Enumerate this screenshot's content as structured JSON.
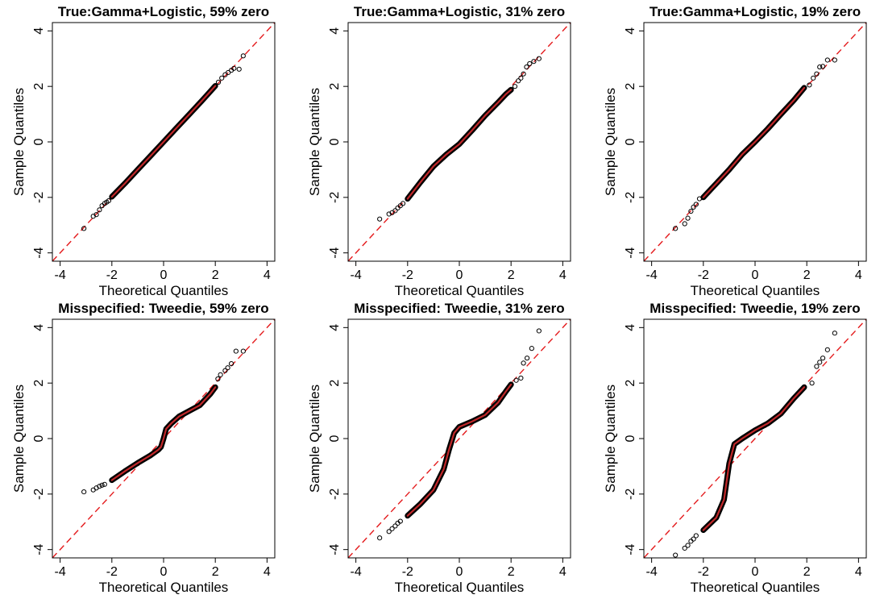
{
  "chart_data": [
    {
      "type": "scatter",
      "title": "True:Gamma+Logistic, 59% zero",
      "xlabel": "Theoretical Quantiles",
      "ylabel": "Sample Quantiles",
      "xlim": [
        -4.3,
        4.3
      ],
      "ylim": [
        -4.3,
        4.3
      ],
      "xticks": [
        "-4",
        "-2",
        "0",
        "2",
        "4"
      ],
      "yticks": [
        "-4",
        "-2",
        "0",
        "2",
        "4"
      ],
      "reference_line": {
        "slope": 1,
        "intercept": 0,
        "color": "#e41a1c",
        "style": "dashed"
      },
      "points": [
        [
          -3.08,
          -3.12
        ],
        [
          -2.72,
          -2.68
        ],
        [
          -2.6,
          -2.62
        ],
        [
          -2.48,
          -2.45
        ],
        [
          -2.38,
          -2.3
        ],
        [
          -2.28,
          -2.22
        ],
        [
          -2.2,
          -2.17
        ],
        [
          -2.12,
          -2.12
        ],
        [
          -2.0,
          -1.98
        ],
        [
          -1.5,
          -1.5
        ],
        [
          -1.0,
          -1.0
        ],
        [
          -0.5,
          -0.5
        ],
        [
          0.0,
          0.0
        ],
        [
          0.5,
          0.5
        ],
        [
          1.0,
          1.0
        ],
        [
          1.5,
          1.5
        ],
        [
          2.0,
          2.02
        ],
        [
          2.12,
          2.15
        ],
        [
          2.25,
          2.3
        ],
        [
          2.38,
          2.42
        ],
        [
          2.5,
          2.5
        ],
        [
          2.62,
          2.58
        ],
        [
          2.72,
          2.65
        ],
        [
          2.92,
          2.62
        ],
        [
          3.08,
          3.1
        ]
      ]
    },
    {
      "type": "scatter",
      "title": "True:Gamma+Logistic, 31% zero",
      "xlabel": "Theoretical Quantiles",
      "ylabel": "Sample Quantiles",
      "xlim": [
        -4.3,
        4.3
      ],
      "ylim": [
        -4.3,
        4.3
      ],
      "xticks": [
        "-4",
        "-2",
        "0",
        "2",
        "4"
      ],
      "yticks": [
        "-4",
        "-2",
        "0",
        "2",
        "4"
      ],
      "reference_line": {
        "slope": 1,
        "intercept": 0,
        "color": "#e41a1c",
        "style": "dashed"
      },
      "points": [
        [
          -3.08,
          -2.78
        ],
        [
          -2.72,
          -2.6
        ],
        [
          -2.6,
          -2.55
        ],
        [
          -2.48,
          -2.48
        ],
        [
          -2.38,
          -2.38
        ],
        [
          -2.28,
          -2.3
        ],
        [
          -2.18,
          -2.22
        ],
        [
          -2.0,
          -2.05
        ],
        [
          -1.5,
          -1.45
        ],
        [
          -1.0,
          -0.88
        ],
        [
          -0.5,
          -0.45
        ],
        [
          0.0,
          -0.08
        ],
        [
          0.5,
          0.42
        ],
        [
          1.0,
          0.95
        ],
        [
          1.5,
          1.42
        ],
        [
          1.8,
          1.72
        ],
        [
          2.0,
          1.88
        ],
        [
          2.15,
          2.0
        ],
        [
          2.28,
          2.2
        ],
        [
          2.38,
          2.3
        ],
        [
          2.48,
          2.45
        ],
        [
          2.6,
          2.7
        ],
        [
          2.72,
          2.82
        ],
        [
          2.88,
          2.9
        ],
        [
          3.08,
          3.0
        ]
      ]
    },
    {
      "type": "scatter",
      "title": "True:Gamma+Logistic, 19% zero",
      "xlabel": "Theoretical Quantiles",
      "ylabel": "Sample Quantiles",
      "xlim": [
        -4.3,
        4.3
      ],
      "ylim": [
        -4.3,
        4.3
      ],
      "xticks": [
        "-4",
        "-2",
        "0",
        "2",
        "4"
      ],
      "yticks": [
        "-4",
        "-2",
        "0",
        "2",
        "4"
      ],
      "reference_line": {
        "slope": 1,
        "intercept": 0,
        "color": "#e41a1c",
        "style": "dashed"
      },
      "points": [
        [
          -3.08,
          -3.12
        ],
        [
          -2.72,
          -2.95
        ],
        [
          -2.6,
          -2.75
        ],
        [
          -2.48,
          -2.5
        ],
        [
          -2.38,
          -2.35
        ],
        [
          -2.28,
          -2.25
        ],
        [
          -2.15,
          -2.05
        ],
        [
          -2.0,
          -2.0
        ],
        [
          -1.5,
          -1.5
        ],
        [
          -1.0,
          -1.0
        ],
        [
          -0.5,
          -0.45
        ],
        [
          0.0,
          0.0
        ],
        [
          0.5,
          0.48
        ],
        [
          1.0,
          1.0
        ],
        [
          1.5,
          1.5
        ],
        [
          1.9,
          1.95
        ],
        [
          2.1,
          2.05
        ],
        [
          2.25,
          2.3
        ],
        [
          2.38,
          2.45
        ],
        [
          2.5,
          2.7
        ],
        [
          2.62,
          2.72
        ],
        [
          2.8,
          2.95
        ],
        [
          3.08,
          2.95
        ]
      ]
    },
    {
      "type": "scatter",
      "title": "Misspecified: Tweedie, 59% zero",
      "xlabel": "Theoretical Quantiles",
      "ylabel": "Sample Quantiles",
      "xlim": [
        -4.3,
        4.3
      ],
      "ylim": [
        -4.3,
        4.3
      ],
      "xticks": [
        "-4",
        "-2",
        "0",
        "2",
        "4"
      ],
      "yticks": [
        "-4",
        "-2",
        "0",
        "2",
        "4"
      ],
      "reference_line": {
        "slope": 1,
        "intercept": 0,
        "color": "#e41a1c",
        "style": "dashed"
      },
      "points": [
        [
          -3.08,
          -1.92
        ],
        [
          -2.72,
          -1.85
        ],
        [
          -2.6,
          -1.78
        ],
        [
          -2.48,
          -1.72
        ],
        [
          -2.38,
          -1.68
        ],
        [
          -2.28,
          -1.65
        ],
        [
          -2.0,
          -1.5
        ],
        [
          -1.5,
          -1.18
        ],
        [
          -1.0,
          -0.88
        ],
        [
          -0.5,
          -0.6
        ],
        [
          -0.2,
          -0.4
        ],
        [
          -0.1,
          -0.3
        ],
        [
          0.0,
          0.0
        ],
        [
          0.1,
          0.35
        ],
        [
          0.3,
          0.55
        ],
        [
          0.6,
          0.8
        ],
        [
          1.0,
          1.0
        ],
        [
          1.4,
          1.2
        ],
        [
          1.8,
          1.6
        ],
        [
          2.0,
          1.85
        ],
        [
          2.1,
          2.15
        ],
        [
          2.2,
          2.3
        ],
        [
          2.38,
          2.45
        ],
        [
          2.48,
          2.55
        ],
        [
          2.62,
          2.7
        ],
        [
          2.8,
          3.15
        ],
        [
          3.08,
          3.15
        ]
      ]
    },
    {
      "type": "scatter",
      "title": "Misspecified: Tweedie, 31% zero",
      "xlabel": "Theoretical Quantiles",
      "ylabel": "Sample Quantiles",
      "xlim": [
        -4.3,
        4.3
      ],
      "ylim": [
        -4.3,
        4.3
      ],
      "xticks": [
        "-4",
        "-2",
        "0",
        "2",
        "4"
      ],
      "yticks": [
        "-4",
        "-2",
        "0",
        "2",
        "4"
      ],
      "reference_line": {
        "slope": 1,
        "intercept": 0,
        "color": "#e41a1c",
        "style": "dashed"
      },
      "points": [
        [
          -3.08,
          -3.58
        ],
        [
          -2.72,
          -3.35
        ],
        [
          -2.6,
          -3.25
        ],
        [
          -2.48,
          -3.15
        ],
        [
          -2.38,
          -3.05
        ],
        [
          -2.28,
          -2.98
        ],
        [
          -2.0,
          -2.78
        ],
        [
          -1.5,
          -2.35
        ],
        [
          -1.0,
          -1.85
        ],
        [
          -0.6,
          -1.1
        ],
        [
          -0.4,
          -0.4
        ],
        [
          -0.2,
          0.2
        ],
        [
          0.0,
          0.42
        ],
        [
          0.5,
          0.62
        ],
        [
          1.0,
          0.85
        ],
        [
          1.5,
          1.3
        ],
        [
          1.8,
          1.7
        ],
        [
          2.0,
          1.95
        ],
        [
          2.2,
          2.1
        ],
        [
          2.38,
          2.18
        ],
        [
          2.48,
          2.72
        ],
        [
          2.62,
          2.9
        ],
        [
          2.8,
          3.25
        ],
        [
          3.08,
          3.88
        ]
      ]
    },
    {
      "type": "scatter",
      "title": "Misspecified: Tweedie, 19% zero",
      "xlabel": "Theoretical Quantiles",
      "ylabel": "Sample Quantiles",
      "xlim": [
        -4.3,
        4.3
      ],
      "ylim": [
        -4.3,
        4.3
      ],
      "xticks": [
        "-4",
        "-2",
        "0",
        "2",
        "4"
      ],
      "yticks": [
        "-4",
        "-2",
        "0",
        "2",
        "4"
      ],
      "reference_line": {
        "slope": 1,
        "intercept": 0,
        "color": "#e41a1c",
        "style": "dashed"
      },
      "points": [
        [
          -3.08,
          -4.2
        ],
        [
          -2.72,
          -3.95
        ],
        [
          -2.6,
          -3.85
        ],
        [
          -2.48,
          -3.7
        ],
        [
          -2.38,
          -3.62
        ],
        [
          -2.28,
          -3.5
        ],
        [
          -2.0,
          -3.3
        ],
        [
          -1.5,
          -2.85
        ],
        [
          -1.2,
          -2.2
        ],
        [
          -1.0,
          -0.9
        ],
        [
          -0.8,
          -0.2
        ],
        [
          -0.5,
          0.0
        ],
        [
          0.0,
          0.3
        ],
        [
          0.5,
          0.55
        ],
        [
          1.0,
          0.9
        ],
        [
          1.5,
          1.45
        ],
        [
          1.9,
          1.85
        ],
        [
          2.2,
          2.0
        ],
        [
          2.38,
          2.6
        ],
        [
          2.5,
          2.75
        ],
        [
          2.62,
          2.9
        ],
        [
          2.8,
          3.2
        ],
        [
          3.08,
          3.8
        ]
      ]
    }
  ]
}
